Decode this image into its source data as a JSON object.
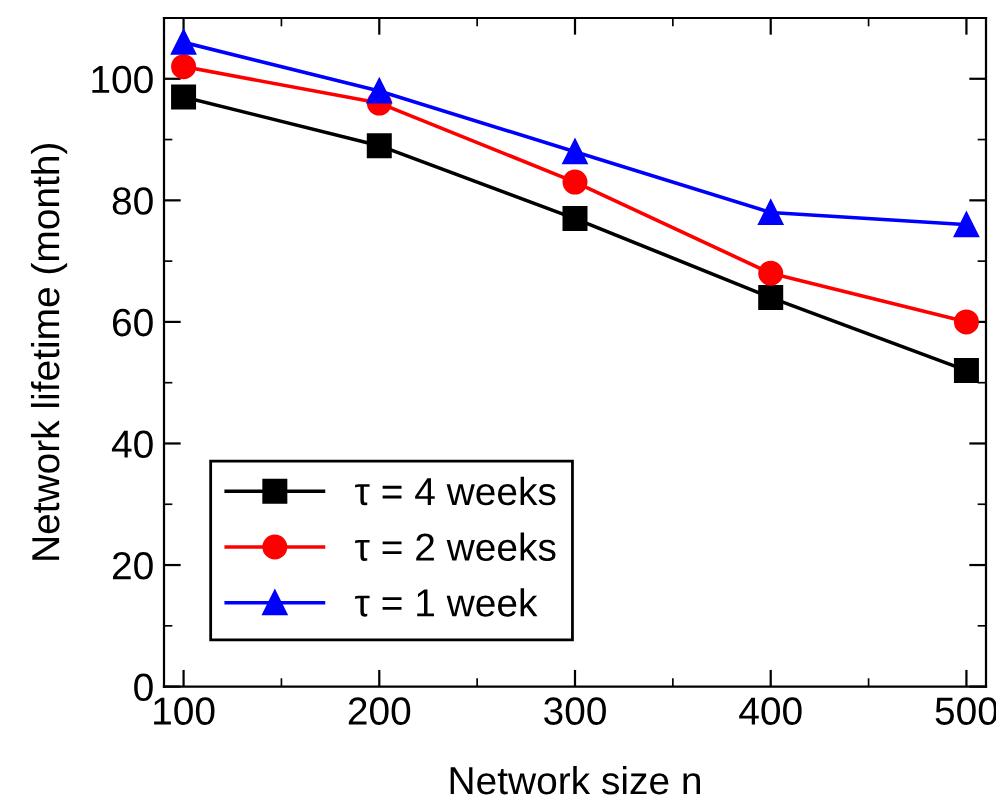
{
  "chart_data": {
    "type": "line",
    "xlabel": "Network size n",
    "ylabel": "Network lifetime (month)",
    "x": [
      100,
      200,
      300,
      400,
      500
    ],
    "series": [
      {
        "name": "τ = 4 weeks",
        "color": "#000000",
        "marker": "square",
        "values": [
          97,
          89,
          77,
          64,
          52
        ]
      },
      {
        "name": "τ = 2 weeks",
        "color": "#ff0000",
        "marker": "circle",
        "values": [
          102,
          96,
          83,
          68,
          60
        ]
      },
      {
        "name": "τ = 1 week",
        "color": "#0000ff",
        "marker": "triangle",
        "values": [
          106,
          98,
          88,
          78,
          76
        ]
      }
    ],
    "xlim": [
      90,
      510
    ],
    "xticks": [
      100,
      200,
      300,
      400,
      500
    ],
    "ylim": [
      0,
      110
    ],
    "yticks": [
      0,
      20,
      40,
      60,
      80,
      100
    ],
    "grid": false,
    "legend": "bottom left",
    "line_style": "solid"
  }
}
